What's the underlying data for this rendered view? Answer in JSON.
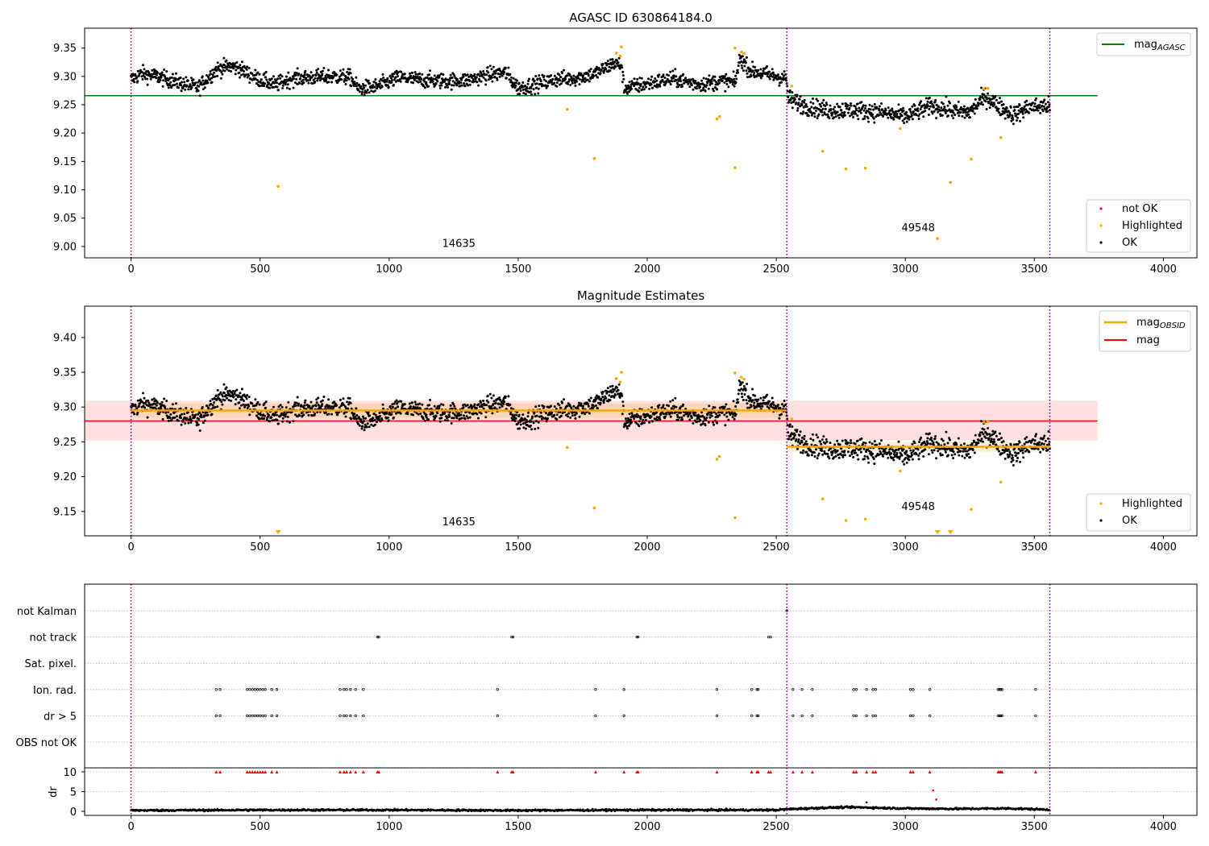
{
  "chart_data": [
    {
      "type": "scatter",
      "title": "AGASC ID 630864184.0",
      "xlim": [
        -180,
        4130
      ],
      "ylim": [
        8.98,
        9.385
      ],
      "x_ticks": [
        0,
        500,
        1000,
        1500,
        2000,
        2500,
        3000,
        3500,
        4000
      ],
      "y_ticks": [
        "9.00",
        "9.05",
        "9.10",
        "9.15",
        "9.20",
        "9.25",
        "9.30",
        "9.35"
      ],
      "obs_boundaries": [
        0,
        2541,
        3560
      ],
      "obs_labels": [
        {
          "text": "14635",
          "x": 1270,
          "y": 8.999
        },
        {
          "text": "49548",
          "x": 3050,
          "y": 9.027
        }
      ],
      "lines": [
        {
          "name": "mag_AGASC",
          "color": "#008000",
          "y": 9.266,
          "x_range": [
            -180,
            3745
          ]
        }
      ],
      "series": [
        {
          "name": "not OK",
          "color": "#ff0000"
        },
        {
          "name": "Highlighted",
          "color": "#ffa500",
          "points": [
            [
              570,
              9.106
            ],
            [
              1690,
              9.242
            ],
            [
              1795,
              9.155
            ],
            [
              1880,
              9.341
            ],
            [
              1895,
              9.336
            ],
            [
              1900,
              9.352
            ],
            [
              2270,
              9.225
            ],
            [
              2280,
              9.229
            ],
            [
              2340,
              9.139
            ],
            [
              2340,
              9.35
            ],
            [
              2365,
              9.343
            ],
            [
              2375,
              9.34
            ],
            [
              2560,
              9.283
            ],
            [
              2680,
              9.168
            ],
            [
              2770,
              9.137
            ],
            [
              2845,
              9.138
            ],
            [
              2980,
              9.208
            ],
            [
              3125,
              9.014
            ],
            [
              3175,
              9.113
            ],
            [
              3255,
              9.154
            ],
            [
              3305,
              9.278
            ],
            [
              3320,
              9.279
            ],
            [
              3370,
              9.192
            ]
          ]
        },
        {
          "name": "OK",
          "color": "#000000",
          "trend": [
            [
              0,
              9.294
            ],
            [
              40,
              9.305
            ],
            [
              100,
              9.3
            ],
            [
              200,
              9.287
            ],
            [
              260,
              9.28
            ],
            [
              330,
              9.312
            ],
            [
              380,
              9.318
            ],
            [
              420,
              9.314
            ],
            [
              480,
              9.298
            ],
            [
              560,
              9.285
            ],
            [
              620,
              9.296
            ],
            [
              700,
              9.298
            ],
            [
              780,
              9.3
            ],
            [
              850,
              9.298
            ],
            [
              880,
              9.278
            ],
            [
              950,
              9.282
            ],
            [
              1040,
              9.298
            ],
            [
              1120,
              9.294
            ],
            [
              1200,
              9.292
            ],
            [
              1300,
              9.293
            ],
            [
              1380,
              9.302
            ],
            [
              1450,
              9.307
            ],
            [
              1500,
              9.28
            ],
            [
              1560,
              9.285
            ],
            [
              1650,
              9.295
            ],
            [
              1720,
              9.297
            ],
            [
              1800,
              9.305
            ],
            [
              1870,
              9.323
            ],
            [
              1900,
              9.32
            ],
            [
              1910,
              9.279
            ],
            [
              2000,
              9.287
            ],
            [
              2100,
              9.296
            ],
            [
              2200,
              9.286
            ],
            [
              2300,
              9.292
            ],
            [
              2340,
              9.288
            ],
            [
              2360,
              9.332
            ],
            [
              2400,
              9.31
            ],
            [
              2540,
              9.296
            ],
            [
              2545,
              9.261
            ],
            [
              2620,
              9.247
            ],
            [
              2700,
              9.24
            ],
            [
              2800,
              9.241
            ],
            [
              2900,
              9.237
            ],
            [
              3000,
              9.229
            ],
            [
              3100,
              9.248
            ],
            [
              3200,
              9.238
            ],
            [
              3250,
              9.237
            ],
            [
              3310,
              9.265
            ],
            [
              3360,
              9.248
            ],
            [
              3420,
              9.232
            ],
            [
              3480,
              9.246
            ],
            [
              3560,
              9.248
            ]
          ]
        }
      ],
      "legend_top": {
        "position": "top-right",
        "entries": [
          "mag_AGASC"
        ]
      },
      "legend_bottom": {
        "position": "lower-right",
        "entries": [
          "not OK",
          "Highlighted",
          "OK"
        ]
      }
    },
    {
      "type": "scatter",
      "title": "Magnitude Estimates",
      "xlim": [
        -180,
        4130
      ],
      "ylim": [
        9.115,
        9.445
      ],
      "x_ticks": [
        0,
        500,
        1000,
        1500,
        2000,
        2500,
        3000,
        3500,
        4000
      ],
      "y_ticks": [
        "9.15",
        "9.20",
        "9.25",
        "9.30",
        "9.35",
        "9.40"
      ],
      "obs_boundaries": [
        0,
        2541,
        3560
      ],
      "obs_labels": [
        {
          "text": "14635",
          "x": 1270,
          "y": 9.13
        },
        {
          "text": "49548",
          "x": 3050,
          "y": 9.152
        }
      ],
      "bands": [
        {
          "color": "#ff0000",
          "opacity": 0.12,
          "y_range": [
            9.252,
            9.309
          ],
          "x_range": [
            -180,
            3745
          ]
        },
        {
          "color": "#ffa500",
          "opacity": 0.18,
          "y_range": [
            9.285,
            9.305
          ],
          "x_range": [
            0,
            2541
          ]
        },
        {
          "color": "#ffa500",
          "opacity": 0.18,
          "y_range": [
            9.236,
            9.25
          ],
          "x_range": [
            2541,
            3560
          ]
        }
      ],
      "lines": [
        {
          "name": "mag",
          "color": "#ff0000",
          "y": 9.28,
          "x_range": [
            -180,
            3745
          ]
        },
        {
          "name": "mag_OBSID",
          "color": "#ffa500",
          "y": 9.295,
          "x_range": [
            0,
            2541
          ]
        },
        {
          "name": "mag_OBSID",
          "color": "#ffa500",
          "y": 9.243,
          "x_range": [
            2541,
            3560
          ]
        }
      ],
      "off_scale_markers": [
        570,
        3125,
        3175
      ],
      "series": [
        {
          "name": "Highlighted",
          "color": "#ffa500",
          "points": [
            [
              1690,
              9.242
            ],
            [
              1795,
              9.155
            ],
            [
              1880,
              9.341
            ],
            [
              1895,
              9.336
            ],
            [
              1900,
              9.35
            ],
            [
              2270,
              9.225
            ],
            [
              2280,
              9.229
            ],
            [
              2340,
              9.141
            ],
            [
              2340,
              9.349
            ],
            [
              2365,
              9.343
            ],
            [
              2375,
              9.34
            ],
            [
              2560,
              9.283
            ],
            [
              2680,
              9.168
            ],
            [
              2770,
              9.137
            ],
            [
              2845,
              9.139
            ],
            [
              2980,
              9.208
            ],
            [
              3255,
              9.153
            ],
            [
              3305,
              9.278
            ],
            [
              3320,
              9.279
            ],
            [
              3370,
              9.192
            ]
          ]
        },
        {
          "name": "OK",
          "color": "#000000",
          "same_as_panel": 0
        }
      ],
      "legend_top": {
        "position": "top-right",
        "entries": [
          "mag_OBSID",
          "mag"
        ]
      },
      "legend_bottom": {
        "position": "lower-right",
        "entries": [
          "Highlighted",
          "OK"
        ]
      }
    },
    {
      "type": "scatter",
      "title": "",
      "xlim": [
        -180,
        4130
      ],
      "x_ticks": [
        0,
        500,
        1000,
        1500,
        2000,
        2500,
        3000,
        3500,
        4000
      ],
      "obs_boundaries": [
        0,
        2541,
        3560
      ],
      "flag_rows": [
        "not Kalman",
        "not track",
        "Sat. pixel.",
        "Ion. rad.",
        "dr > 5",
        "OBS not OK"
      ],
      "flag_points": {
        "not Kalman": [
          2541
        ],
        "not track": [
          955,
          960,
          1475,
          1480,
          1960,
          1965,
          2470,
          2478
        ],
        "Sat. pixel.": [],
        "Ion. rad.": [
          330,
          345,
          450,
          460,
          470,
          480,
          490,
          500,
          510,
          520,
          545,
          565,
          810,
          825,
          835,
          850,
          870,
          900,
          1420,
          1800,
          1910,
          2270,
          2405,
          2425,
          2430,
          2565,
          2600,
          2640,
          2800,
          2810,
          2850,
          2875,
          2885,
          3020,
          3030,
          3095,
          3360,
          3365,
          3370,
          3375,
          3505
        ],
        "dr > 5": [
          330,
          345,
          450,
          460,
          470,
          480,
          490,
          500,
          510,
          520,
          545,
          565,
          810,
          825,
          835,
          850,
          870,
          900,
          1420,
          1800,
          1910,
          2270,
          2405,
          2425,
          2430,
          2565,
          2600,
          2640,
          2800,
          2810,
          2850,
          2875,
          2885,
          3020,
          3030,
          3095,
          3360,
          3365,
          3370,
          3375,
          3505
        ],
        "OBS not OK": []
      },
      "dr": {
        "ylabel": "dr",
        "ylim": [
          -0.4,
          10.4
        ],
        "y_ticks": [
          "0",
          "5",
          "10"
        ],
        "clipped_markers_y": 10,
        "clipped_markers_color": "#ff0000",
        "outliers": [
          [
            3108,
            5.3
          ],
          [
            3120,
            3.0
          ],
          [
            2850,
            2.3
          ]
        ],
        "baseline": [
          [
            0,
            0.3
          ],
          [
            500,
            0.4
          ],
          [
            1000,
            0.4
          ],
          [
            1500,
            0.3
          ],
          [
            2000,
            0.4
          ],
          [
            2500,
            0.4
          ],
          [
            2541,
            0.6
          ],
          [
            2700,
            1.0
          ],
          [
            2800,
            1.1
          ],
          [
            3000,
            0.8
          ],
          [
            3200,
            0.7
          ],
          [
            3400,
            0.8
          ],
          [
            3560,
            0.5
          ]
        ]
      }
    }
  ],
  "legend_labels": {
    "mag_agasc_main": "mag",
    "mag_agasc_sub": "AGASC",
    "mag_obsid_main": "mag",
    "mag_obsid_sub": "OBSID",
    "mag": "mag",
    "not_ok": "not OK",
    "highlighted": "Highlighted",
    "ok": "OK"
  },
  "colors": {
    "ok": "#000000",
    "highlighted": "#ffa500",
    "not_ok": "#ff0000",
    "agasc_line": "#008000",
    "mag_line": "#ff0000",
    "obsid_line": "#ffa500",
    "boundary": "#800080",
    "flag_grid": "#b0b0b0"
  }
}
